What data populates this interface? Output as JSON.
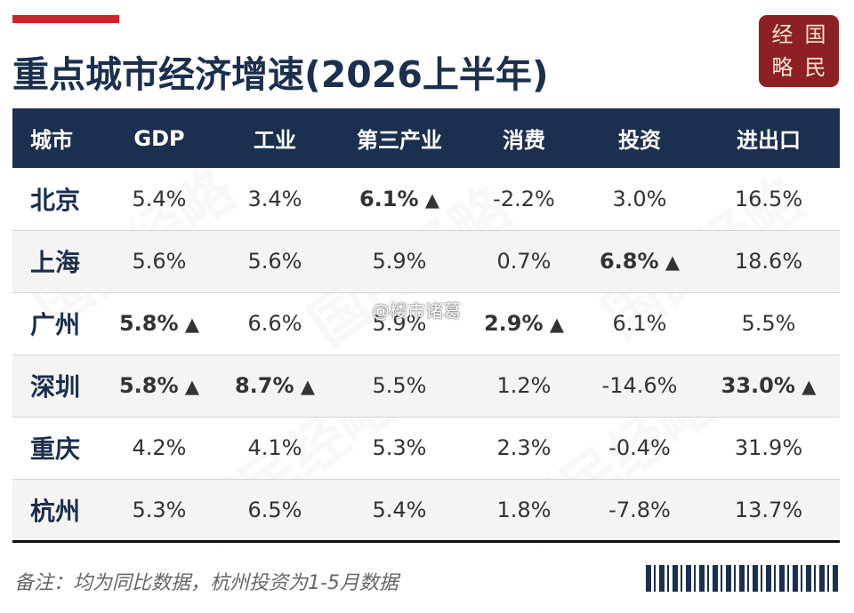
{
  "title": "重点城市经济增速(2026上半年)",
  "logo": {
    "chars": [
      "经",
      "国",
      "略",
      "民"
    ]
  },
  "table": {
    "headers": [
      "城市",
      "GDP",
      "工业",
      "第三产业",
      "消费",
      "投资",
      "进出口"
    ],
    "rows": [
      {
        "city": "北京",
        "gdp": "5.4%",
        "industry": "3.4%",
        "tertiary": "6.1%",
        "consumption": "-2.2%",
        "investment": "3.0%",
        "trade": "16.5%"
      },
      {
        "city": "上海",
        "gdp": "5.6%",
        "industry": "5.6%",
        "tertiary": "5.9%",
        "consumption": "0.7%",
        "investment": "6.8%",
        "trade": "18.6%"
      },
      {
        "city": "广州",
        "gdp": "5.8%",
        "industry": "6.6%",
        "tertiary": "5.9%",
        "consumption": "2.9%",
        "investment": "6.1%",
        "trade": "5.5%"
      },
      {
        "city": "深圳",
        "gdp": "5.8%",
        "industry": "8.7%",
        "tertiary": "5.5%",
        "consumption": "1.2%",
        "investment": "-14.6%",
        "trade": "33.0%"
      },
      {
        "city": "重庆",
        "gdp": "4.2%",
        "industry": "4.1%",
        "tertiary": "5.3%",
        "consumption": "2.3%",
        "investment": "-0.4%",
        "trade": "31.9%"
      },
      {
        "city": "杭州",
        "gdp": "5.3%",
        "industry": "6.5%",
        "tertiary": "5.4%",
        "consumption": "1.8%",
        "investment": "-7.8%",
        "trade": "13.7%"
      }
    ]
  },
  "watermark_text": "国民经略",
  "weibo_watermark": "@楼市诸葛",
  "footnote": "备注：均为同比数据，杭州投资为1-5月数据",
  "colors": {
    "navy": "#1b2f4e",
    "red": "#d4202a",
    "logo_bg": "#8d2025"
  }
}
